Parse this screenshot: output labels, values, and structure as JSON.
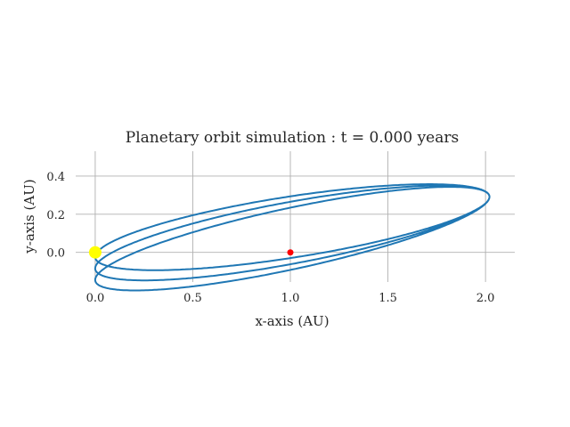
{
  "chart_data": {
    "type": "line",
    "title": "Planetary orbit simulation : t = 0.000 years",
    "xlabel": "x-axis (AU)",
    "ylabel": "y-axis (AU)",
    "xlim": [
      -0.1,
      2.15
    ],
    "ylim": [
      -0.155,
      0.53
    ],
    "xticks": [
      0.0,
      0.5,
      1.0,
      1.5,
      2.0
    ],
    "xtick_labels": [
      "0.0",
      "0.5",
      "1.0",
      "1.5",
      "2.0"
    ],
    "yticks": [
      0.0,
      0.2,
      0.4
    ],
    "ytick_labels": [
      "0.0",
      "0.2",
      "0.4"
    ],
    "grid": true,
    "colors": {
      "orbit": "#1f77b4",
      "star": "#ffff00",
      "planet": "#ff0000",
      "grid": "#b0b0b0"
    },
    "star": {
      "x": 0.0,
      "y": 0.0
    },
    "planet": {
      "x": 1.0,
      "y": 0.0
    },
    "orbit": {
      "aphelion_x": [
        2.02,
        2.03,
        2.04
      ],
      "perihelion_y": [
        -0.03,
        -0.065,
        -0.09
      ],
      "aphelion_y": [
        0.29,
        0.345,
        0.41
      ],
      "ellipse_tilt_deg": 8.3,
      "semi_major": 1.02,
      "semi_minor": 0.153,
      "end_x": 1.0,
      "end_y": -0.083
    }
  }
}
